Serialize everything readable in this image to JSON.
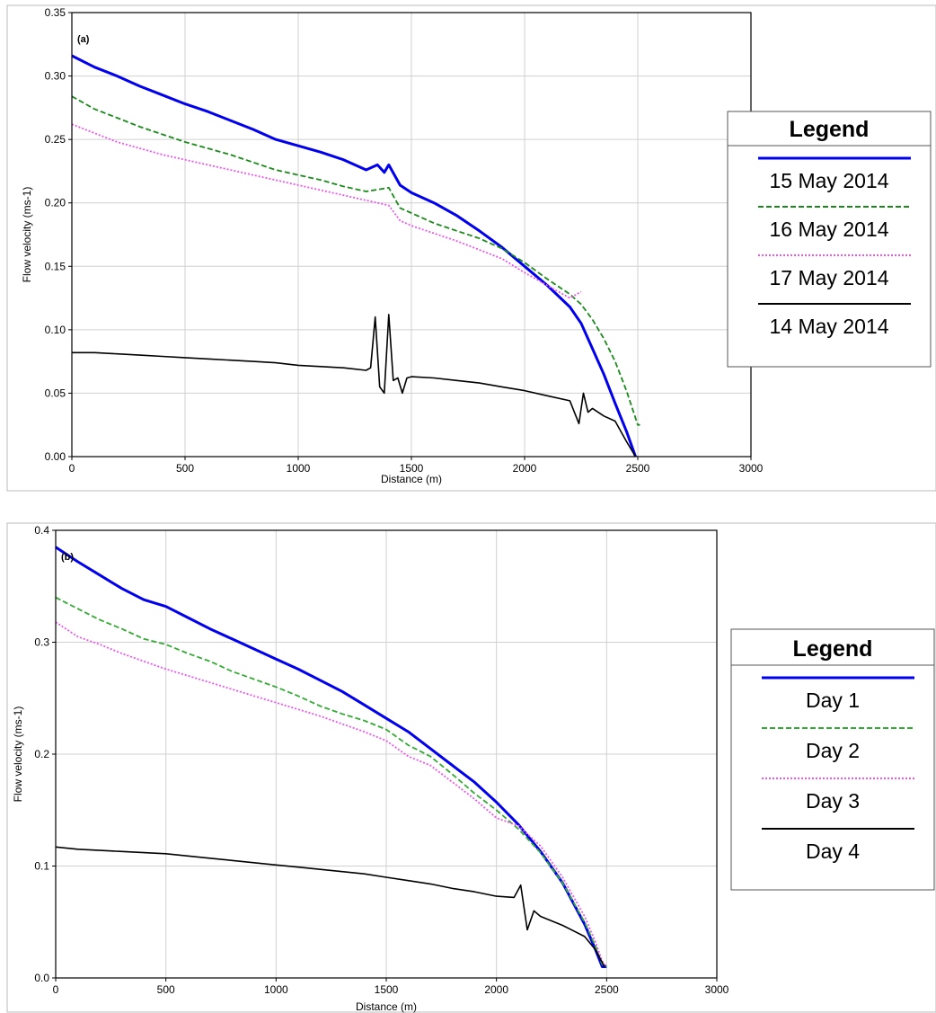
{
  "chart_data": [
    {
      "type": "line",
      "panel_label": "(a)",
      "xlabel": "Distance (m)",
      "ylabel": "Flow velocity (ms-1)",
      "xlim": [
        0,
        3000
      ],
      "ylim": [
        0,
        0.35
      ],
      "xticks": [
        "0",
        "500",
        "1000",
        "1500",
        "2000",
        "2500",
        "3000"
      ],
      "yticks": [
        "0.00",
        "0.05",
        "0.10",
        "0.15",
        "0.20",
        "0.25",
        "0.30",
        "0.35"
      ],
      "grid": true,
      "legend": {
        "title": "Legend",
        "position": "right",
        "entries": [
          "15 May 2014",
          "16 May 2014",
          "17 May 2014",
          "14 May 2014"
        ]
      },
      "series": [
        {
          "name": "15 May 2014",
          "color": "#0000ee",
          "style": "solid",
          "x": [
            0,
            100,
            200,
            300,
            400,
            500,
            600,
            700,
            800,
            900,
            1000,
            1100,
            1200,
            1300,
            1350,
            1380,
            1400,
            1450,
            1500,
            1600,
            1700,
            1800,
            1900,
            2000,
            2100,
            2200,
            2250,
            2300,
            2350,
            2400,
            2450,
            2490
          ],
          "y": [
            0.316,
            0.307,
            0.3,
            0.292,
            0.285,
            0.278,
            0.272,
            0.265,
            0.258,
            0.25,
            0.245,
            0.24,
            0.234,
            0.226,
            0.23,
            0.224,
            0.23,
            0.214,
            0.208,
            0.2,
            0.19,
            0.178,
            0.165,
            0.15,
            0.135,
            0.118,
            0.105,
            0.085,
            0.065,
            0.042,
            0.02,
            0.0
          ]
        },
        {
          "name": "16 May 2014",
          "color": "#1a8a1a",
          "style": "dashed",
          "x": [
            0,
            100,
            200,
            300,
            400,
            500,
            600,
            700,
            800,
            900,
            1000,
            1100,
            1200,
            1300,
            1400,
            1450,
            1500,
            1600,
            1700,
            1800,
            1900,
            2000,
            2100,
            2200,
            2250,
            2300,
            2350,
            2400,
            2450,
            2500,
            2510
          ],
          "y": [
            0.284,
            0.274,
            0.267,
            0.26,
            0.254,
            0.248,
            0.243,
            0.238,
            0.232,
            0.226,
            0.222,
            0.218,
            0.213,
            0.209,
            0.212,
            0.196,
            0.192,
            0.184,
            0.178,
            0.172,
            0.164,
            0.153,
            0.14,
            0.128,
            0.12,
            0.108,
            0.093,
            0.075,
            0.052,
            0.025,
            0.025
          ]
        },
        {
          "name": "17 May 2014",
          "color": "#ee55ee",
          "style": "dotted",
          "x": [
            0,
            100,
            200,
            300,
            400,
            500,
            600,
            700,
            800,
            900,
            1000,
            1100,
            1200,
            1300,
            1400,
            1450,
            1500,
            1600,
            1700,
            1800,
            1900,
            2000,
            2100,
            2200,
            2250
          ],
          "y": [
            0.262,
            0.255,
            0.248,
            0.243,
            0.238,
            0.234,
            0.23,
            0.226,
            0.222,
            0.218,
            0.214,
            0.21,
            0.206,
            0.202,
            0.198,
            0.186,
            0.182,
            0.176,
            0.17,
            0.163,
            0.156,
            0.145,
            0.135,
            0.125,
            0.13
          ]
        },
        {
          "name": "14 May 2014",
          "color": "#000000",
          "style": "solid",
          "x": [
            0,
            100,
            200,
            300,
            400,
            500,
            600,
            700,
            800,
            900,
            1000,
            1100,
            1200,
            1300,
            1320,
            1340,
            1360,
            1380,
            1400,
            1420,
            1440,
            1460,
            1480,
            1500,
            1600,
            1700,
            1800,
            1900,
            2000,
            2100,
            2200,
            2240,
            2260,
            2280,
            2300,
            2350,
            2400,
            2450,
            2490
          ],
          "y": [
            0.082,
            0.082,
            0.081,
            0.08,
            0.079,
            0.078,
            0.077,
            0.076,
            0.075,
            0.074,
            0.072,
            0.071,
            0.07,
            0.068,
            0.07,
            0.11,
            0.055,
            0.05,
            0.112,
            0.06,
            0.062,
            0.05,
            0.062,
            0.063,
            0.062,
            0.06,
            0.058,
            0.055,
            0.052,
            0.048,
            0.044,
            0.026,
            0.05,
            0.035,
            0.038,
            0.032,
            0.028,
            0.012,
            0.0
          ]
        }
      ]
    },
    {
      "type": "line",
      "panel_label": "(b)",
      "xlabel": "Distance (m)",
      "ylabel": "Flow velocity (ms-1)",
      "xlim": [
        0,
        3000
      ],
      "ylim": [
        0,
        0.4
      ],
      "xticks": [
        "0",
        "500",
        "1000",
        "1500",
        "2000",
        "2500",
        "3000"
      ],
      "yticks": [
        "0.0",
        "0.1",
        "0.2",
        "0.3",
        "0.4"
      ],
      "grid": true,
      "legend": {
        "title": "Legend",
        "position": "right",
        "entries": [
          "Day 1",
          "Day 2",
          "Day 3",
          "Day 4"
        ]
      },
      "series": [
        {
          "name": "Day 1",
          "color": "#0000ee",
          "style": "solid",
          "x": [
            0,
            100,
            200,
            300,
            400,
            500,
            600,
            700,
            800,
            900,
            1000,
            1100,
            1200,
            1300,
            1400,
            1500,
            1600,
            1700,
            1800,
            1900,
            2000,
            2100,
            2200,
            2300,
            2400,
            2450,
            2480,
            2500
          ],
          "y": [
            0.385,
            0.372,
            0.36,
            0.348,
            0.338,
            0.332,
            0.322,
            0.312,
            0.303,
            0.294,
            0.285,
            0.276,
            0.266,
            0.256,
            0.244,
            0.232,
            0.22,
            0.205,
            0.19,
            0.175,
            0.157,
            0.137,
            0.113,
            0.085,
            0.048,
            0.025,
            0.01,
            0.01
          ]
        },
        {
          "name": "Day 2",
          "color": "#33aa33",
          "style": "dashed",
          "x": [
            0,
            100,
            200,
            300,
            400,
            500,
            600,
            700,
            800,
            900,
            1000,
            1100,
            1200,
            1300,
            1400,
            1500,
            1600,
            1700,
            1800,
            1900,
            2000,
            2100,
            2200,
            2300,
            2400,
            2450,
            2480,
            2500
          ],
          "y": [
            0.34,
            0.33,
            0.32,
            0.312,
            0.303,
            0.298,
            0.29,
            0.283,
            0.274,
            0.267,
            0.26,
            0.252,
            0.243,
            0.236,
            0.23,
            0.222,
            0.208,
            0.198,
            0.182,
            0.165,
            0.15,
            0.133,
            0.112,
            0.085,
            0.05,
            0.028,
            0.012,
            0.01
          ]
        },
        {
          "name": "Day 3",
          "color": "#ee55ee",
          "style": "dotted",
          "x": [
            0,
            100,
            200,
            300,
            400,
            500,
            600,
            700,
            800,
            900,
            1000,
            1100,
            1200,
            1300,
            1400,
            1500,
            1600,
            1700,
            1800,
            1900,
            2000,
            2100,
            2200,
            2300,
            2400,
            2450,
            2480,
            2500
          ],
          "y": [
            0.318,
            0.305,
            0.298,
            0.29,
            0.283,
            0.276,
            0.27,
            0.264,
            0.258,
            0.252,
            0.246,
            0.24,
            0.234,
            0.227,
            0.22,
            0.212,
            0.198,
            0.19,
            0.175,
            0.16,
            0.143,
            0.136,
            0.118,
            0.09,
            0.055,
            0.032,
            0.015,
            0.01
          ]
        },
        {
          "name": "Day 4",
          "color": "#000000",
          "style": "solid",
          "x": [
            0,
            100,
            200,
            300,
            400,
            500,
            600,
            700,
            800,
            900,
            1000,
            1100,
            1200,
            1300,
            1400,
            1500,
            1600,
            1700,
            1800,
            1900,
            2000,
            2080,
            2110,
            2140,
            2170,
            2200,
            2300,
            2400,
            2450,
            2490
          ],
          "y": [
            0.117,
            0.115,
            0.114,
            0.113,
            0.112,
            0.111,
            0.109,
            0.107,
            0.105,
            0.103,
            0.101,
            0.099,
            0.097,
            0.095,
            0.093,
            0.09,
            0.087,
            0.084,
            0.08,
            0.077,
            0.073,
            0.072,
            0.083,
            0.043,
            0.06,
            0.055,
            0.047,
            0.037,
            0.025,
            0.01
          ]
        }
      ]
    }
  ]
}
